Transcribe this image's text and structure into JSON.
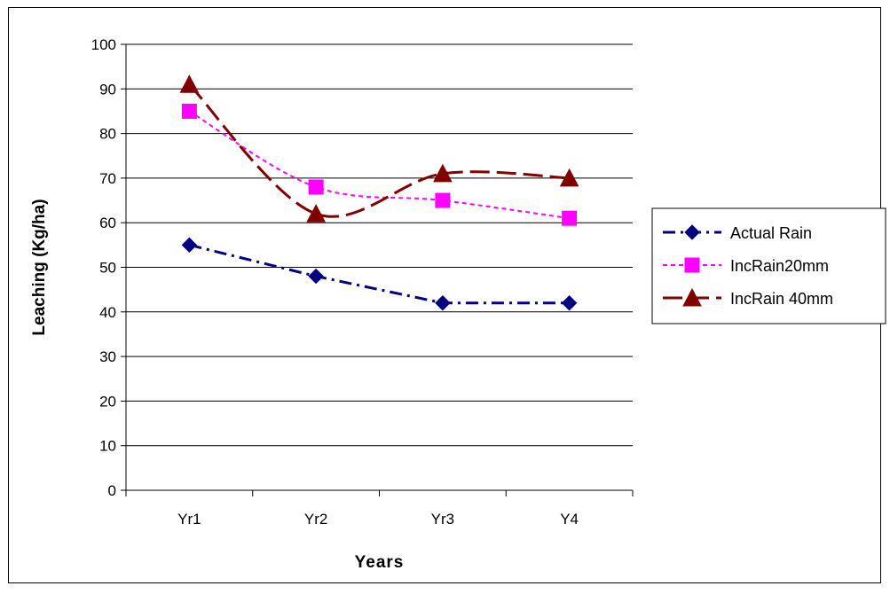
{
  "chart_data": {
    "type": "line",
    "title": "",
    "xlabel": "Years",
    "ylabel": "Leaching (Kg/ha)",
    "ylim": [
      0,
      100
    ],
    "yticks": [
      0,
      10,
      20,
      30,
      40,
      50,
      60,
      70,
      80,
      90,
      100
    ],
    "grid": "horizontal",
    "legend_position": "right",
    "categories": [
      "Yr1",
      "Yr2",
      "Yr3",
      "Y4"
    ],
    "series": [
      {
        "name": "Actual Rain",
        "values": [
          55,
          48,
          42,
          42
        ],
        "color": "#000080",
        "marker": "diamond",
        "dash": "dash-dot"
      },
      {
        "name": "IncRain20mm",
        "values": [
          85,
          68,
          65,
          61
        ],
        "color": "#FF00FF",
        "marker": "square",
        "dash": "dotted"
      },
      {
        "name": "IncRain 40mm",
        "values": [
          91,
          62,
          71,
          70
        ],
        "color": "#800000",
        "marker": "triangle",
        "dash": "long-dash"
      }
    ]
  }
}
